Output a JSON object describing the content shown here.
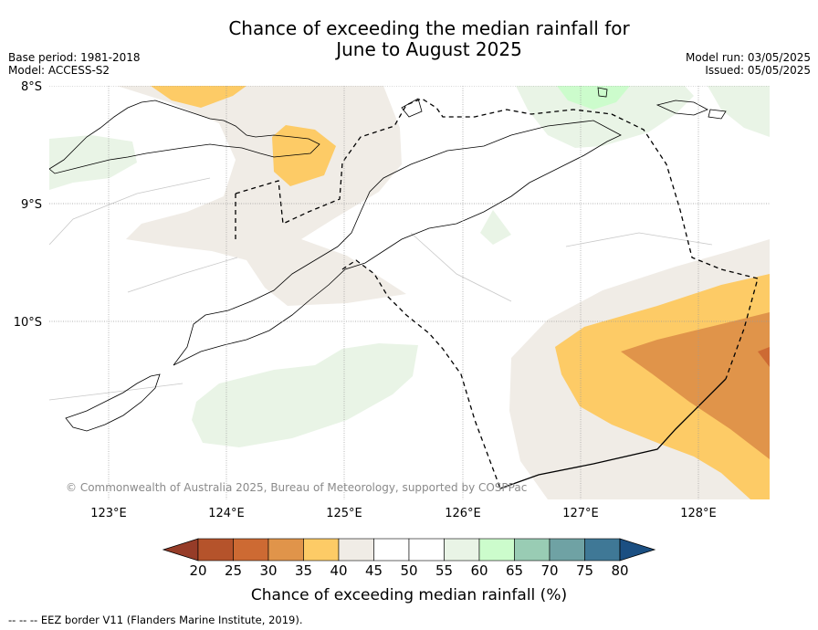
{
  "title_line1": "Chance of exceeding the median rainfall for",
  "title_line2": "June to August 2025",
  "meta_left": {
    "base_period": "Base period: 1981-2018",
    "model": "Model: ACCESS-S2"
  },
  "meta_right": {
    "model_run": "Model run: 03/05/2025",
    "issued": "Issued: 05/05/2025"
  },
  "map": {
    "lat_labels": [
      "8°S",
      "9°S",
      "10°S"
    ],
    "lon_labels": [
      "123°E",
      "124°E",
      "125°E",
      "126°E",
      "127°E",
      "128°E"
    ],
    "copyright": "© Commonwealth of Australia 2025, Bureau of Meteorology, supported by COSPPac"
  },
  "colorbar": {
    "ticks": [
      "20",
      "25",
      "30",
      "35",
      "40",
      "45",
      "50",
      "55",
      "60",
      "65",
      "70",
      "75",
      "80"
    ],
    "colors": [
      "#b5532b",
      "#cd6a33",
      "#e0944a",
      "#fdcb66",
      "#f0ece6",
      "#ffffff",
      "#ffffff",
      "#e9f4e6",
      "#ccfccc",
      "#99ccb4",
      "#6fa2a4",
      "#3f7896"
    ],
    "under_color": "#963c28",
    "over_color": "#1b4f82",
    "label": "Chance of exceeding median rainfall (%)"
  },
  "legend_note": "--  --  -- EEZ border V11 (Flanders Marine Institute, 2019)."
}
